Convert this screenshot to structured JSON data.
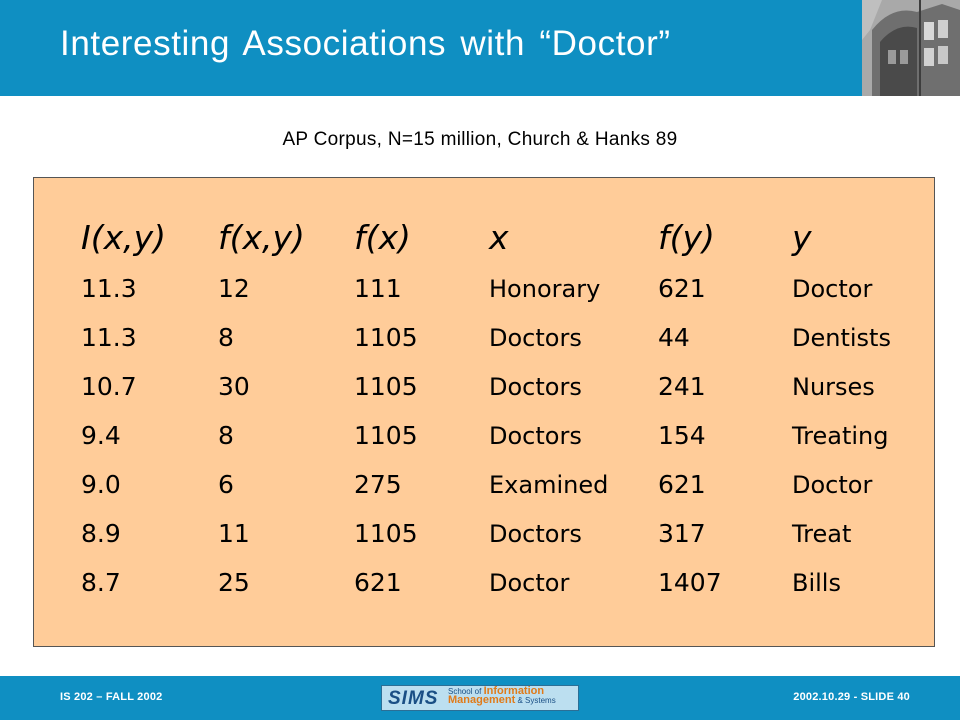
{
  "slide": {
    "title": "Interesting  Associations with “Doctor”",
    "subtitle": "AP Corpus, N=15 million, Church & Hanks 89"
  },
  "table": {
    "headers": [
      "I(x,y)",
      "f(x,y)",
      "f(x)",
      "x",
      "f(y)",
      "y"
    ],
    "rows": [
      [
        "11.3",
        "12",
        "111",
        "Honorary",
        "621",
        "Doctor"
      ],
      [
        "11.3",
        "8",
        "1105",
        "Doctors",
        "44",
        "Dentists"
      ],
      [
        "10.7",
        "30",
        "1105",
        "Doctors",
        "241",
        "Nurses"
      ],
      [
        "9.4",
        "8",
        "1105",
        "Doctors",
        "154",
        "Treating"
      ],
      [
        "9.0",
        "6",
        "275",
        "Examined",
        "621",
        "Doctor"
      ],
      [
        "8.9",
        "11",
        "1105",
        "Doctors",
        "317",
        "Treat"
      ],
      [
        "8.7",
        "25",
        "621",
        "Doctor",
        "1407",
        "Bills"
      ]
    ]
  },
  "footer": {
    "left": "IS 202 – FALL 2002",
    "right": "2002.10.29 - SLIDE 40",
    "logo": {
      "mark": "SIMS",
      "line1_prefix": "School of",
      "line1_main": "Information",
      "line2_main": "Management",
      "line2_suffix": "& Systems"
    }
  },
  "colors": {
    "banner": "#0f8fc2",
    "table_background": "#ffcc99",
    "title_text": "#ffffff"
  }
}
